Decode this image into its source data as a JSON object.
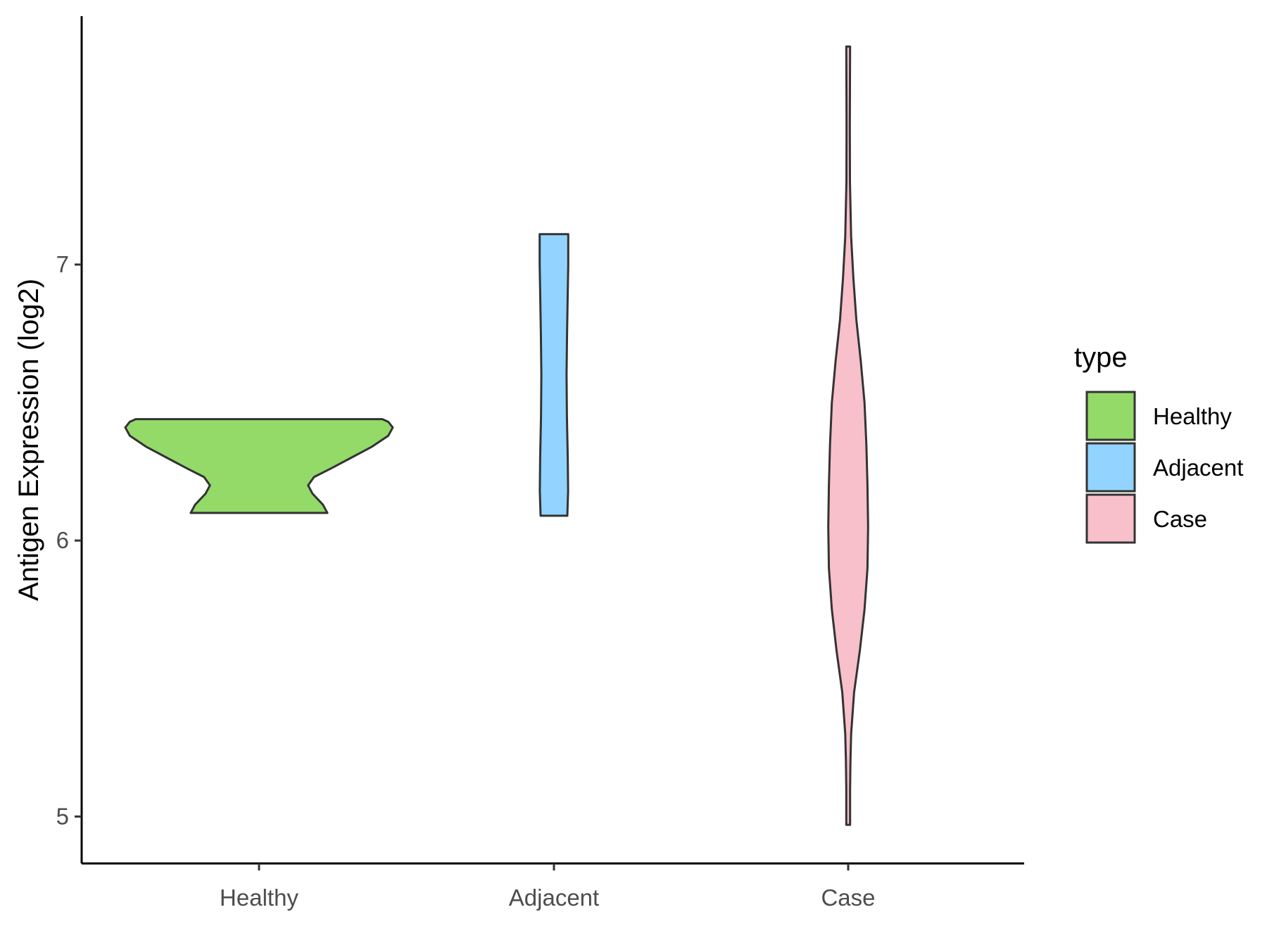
{
  "chart_data": {
    "type": "violin",
    "ylabel": "Antigen Expression (log2)",
    "xlabel": "",
    "categories": [
      "Healthy",
      "Adjacent",
      "Case"
    ],
    "y_ticks": [
      "5",
      "6",
      "7"
    ],
    "ylim": [
      4.83,
      7.9
    ],
    "grid": false,
    "legend": {
      "title": "type",
      "position": "right",
      "entries": [
        "Healthy",
        "Adjacent",
        "Case"
      ]
    },
    "series": [
      {
        "name": "Healthy",
        "color": "#93DA69",
        "min": 6.1,
        "max": 6.44,
        "density": [
          [
            6.1,
            0.46
          ],
          [
            6.13,
            0.43
          ],
          [
            6.17,
            0.36
          ],
          [
            6.2,
            0.33
          ],
          [
            6.23,
            0.37
          ],
          [
            6.26,
            0.48
          ],
          [
            6.3,
            0.62
          ],
          [
            6.34,
            0.76
          ],
          [
            6.38,
            0.87
          ],
          [
            6.41,
            0.9
          ],
          [
            6.43,
            0.87
          ],
          [
            6.44,
            0.83
          ]
        ]
      },
      {
        "name": "Adjacent",
        "color": "#92D4FF",
        "min": 6.09,
        "max": 7.11,
        "density": [
          [
            6.09,
            0.09
          ],
          [
            6.18,
            0.095
          ],
          [
            6.3,
            0.093
          ],
          [
            6.45,
            0.087
          ],
          [
            6.6,
            0.085
          ],
          [
            6.75,
            0.088
          ],
          [
            6.9,
            0.093
          ],
          [
            7.0,
            0.096
          ],
          [
            7.11,
            0.096
          ]
        ]
      },
      {
        "name": "Case",
        "color": "#F8C0CB",
        "min": 4.97,
        "max": 7.79,
        "density": [
          [
            4.97,
            0.013
          ],
          [
            5.1,
            0.013
          ],
          [
            5.2,
            0.015
          ],
          [
            5.3,
            0.02
          ],
          [
            5.45,
            0.04
          ],
          [
            5.6,
            0.078
          ],
          [
            5.75,
            0.11
          ],
          [
            5.9,
            0.13
          ],
          [
            6.05,
            0.134
          ],
          [
            6.2,
            0.13
          ],
          [
            6.35,
            0.122
          ],
          [
            6.5,
            0.11
          ],
          [
            6.65,
            0.085
          ],
          [
            6.8,
            0.055
          ],
          [
            6.95,
            0.035
          ],
          [
            7.1,
            0.02
          ],
          [
            7.3,
            0.012
          ],
          [
            7.5,
            0.011
          ],
          [
            7.65,
            0.012
          ],
          [
            7.79,
            0.013
          ]
        ]
      }
    ]
  }
}
